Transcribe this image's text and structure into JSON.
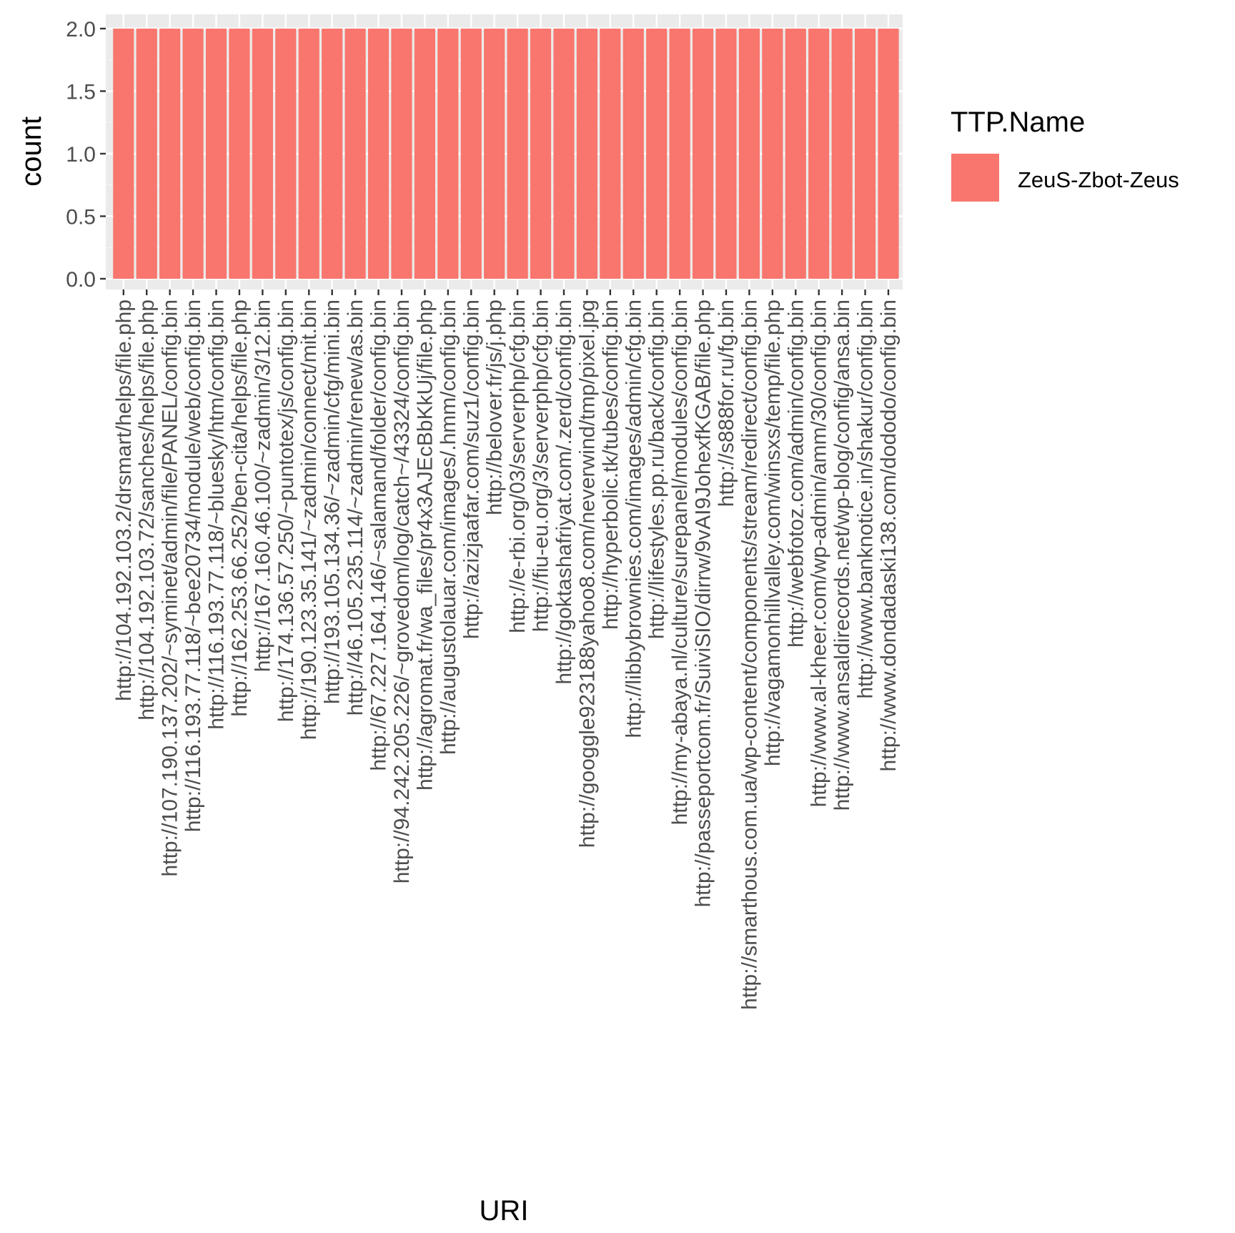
{
  "chart_data": {
    "type": "bar",
    "xlabel": "URI",
    "ylabel": "count",
    "ylim": [
      0,
      2.0
    ],
    "yticks": [
      "0.0",
      "0.5",
      "1.0",
      "1.5",
      "2.0"
    ],
    "ytick_values": [
      0,
      0.5,
      1.0,
      1.5,
      2.0
    ],
    "grid": true,
    "legend": {
      "title": "TTP.Name",
      "placement": "right",
      "entries": [
        {
          "label": "ZeuS-Zbot-Zeus",
          "color": "#F8766D"
        }
      ]
    },
    "categories": [
      "http://104.192.103.2/drsmart/helps/file.php",
      "http://104.192.103.72/sanches/helps/file.php",
      "http://107.190.137.202/~syminet/admin/file/PANEL/config.bin",
      "http://116.193.77.118/~bee20734/module/web/config.bin",
      "http://116.193.77.118/~bluesky/htm/config.bin",
      "http://162.253.66.252/ben-cita/helps/file.php",
      "http://167.160.46.100/~zadmin/3/12.bin",
      "http://174.136.57.250/~puntotex/js/config.bin",
      "http://190.123.35.141/~zadmin/connect/mit.bin",
      "http://193.105.134.36/~zadmin/cfg/mini.bin",
      "http://46.105.235.114/~zadmin/renew/as.bin",
      "http://67.227.164.146/~salamand/folder/config.bin",
      "http://94.242.205.226/~grovedom/log/catch~/43324/config.bin",
      "http://agromat.fr/wa_files/pr4x3AJEcBbKkUj/file.php",
      "http://augustolauar.com/images/.hmm/config.bin",
      "http://azizjaafar.com/suz1/config.bin",
      "http://belover.fr/js/j.php",
      "http://e-rbi.org/03/serverphp/cfg.bin",
      "http://fiu-eu.org/3/serverphp/cfg.bin",
      "http://goktashafriyat.com/.zerd/config.bin",
      "http://googgle923188yahoo8.com/neverwind/tmp/pixel.jpg",
      "http://hyperbolic.tk/tubes/config.bin",
      "http://libbybrownies.com/images/admin/cfg.bin",
      "http://lifestyles.pp.ru/back/config.bin",
      "http://my-abaya.nl/culture/surepanel/modules/config.bin",
      "http://passeportcom.fr/SuiviSIO/dirrw/9vAI9JohexfKGAB/file.php",
      "http://s888for.ru/fg.bin",
      "http://smarthous.com.ua/wp-content/components/stream/redirect/config.bin",
      "http://vagamonhillvalley.com/winsxs/temp/file.php",
      "http://webfotoz.com/admin/config.bin",
      "http://www.al-kheer.com/wp-admin/amm/30/config.bin",
      "http://www.ansaldirecords.net/wp-blog/config/ansa.bin",
      "http://www.banknotice.in/shakur/config.bin",
      "http://www.dondadaski138.com/dododo/config.bin"
    ],
    "series": [
      {
        "name": "ZeuS-Zbot-Zeus",
        "color": "#F8766D",
        "values": [
          2,
          2,
          2,
          2,
          2,
          2,
          2,
          2,
          2,
          2,
          2,
          2,
          2,
          2,
          2,
          2,
          2,
          2,
          2,
          2,
          2,
          2,
          2,
          2,
          2,
          2,
          2,
          2,
          2,
          2,
          2,
          2,
          2,
          2
        ]
      }
    ]
  },
  "colors": {
    "panel_background": "#EBEBEB",
    "grid_major": "#FFFFFF",
    "grid_minor": "#F5F5F5",
    "tick_color": "#333333"
  }
}
